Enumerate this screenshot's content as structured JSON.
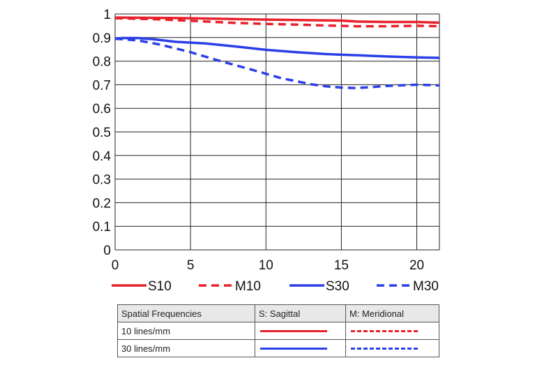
{
  "chart_data": {
    "type": "line",
    "title": "",
    "xlabel": "",
    "ylabel": "",
    "xlim": [
      0,
      21.5
    ],
    "ylim": [
      0,
      1
    ],
    "grid": true,
    "x_ticks": [
      0,
      5,
      10,
      15,
      20
    ],
    "y_ticks": [
      0,
      0.1,
      0.2,
      0.3,
      0.4,
      0.5,
      0.6,
      0.7,
      0.8,
      0.9,
      1
    ],
    "y_tick_labels": [
      "0",
      "0.1",
      "0.2",
      "0.3",
      "0.4",
      "0.5",
      "0.6",
      "0.7",
      "0.8",
      "0.9",
      "1"
    ],
    "legend_position": "bottom",
    "series": [
      {
        "name": "S10",
        "color": "#e8212b",
        "dash": false,
        "x": [
          0,
          5,
          10,
          15,
          16,
          18,
          20,
          21.5
        ],
        "y": [
          0.985,
          0.982,
          0.976,
          0.972,
          0.968,
          0.966,
          0.966,
          0.963
        ]
      },
      {
        "name": "M10",
        "color": "#e8212b",
        "dash": true,
        "x": [
          0,
          3,
          6,
          8,
          10,
          12,
          14,
          16,
          18,
          20,
          21.5
        ],
        "y": [
          0.982,
          0.977,
          0.968,
          0.962,
          0.958,
          0.955,
          0.951,
          0.948,
          0.948,
          0.95,
          0.948
        ]
      },
      {
        "name": "S30",
        "color": "#2b3fe8",
        "dash": false,
        "x": [
          0,
          0.5,
          1.5,
          2.5,
          4,
          6,
          8,
          10,
          12,
          14,
          16,
          18,
          20,
          21.5
        ],
        "y": [
          0.895,
          0.898,
          0.898,
          0.893,
          0.882,
          0.875,
          0.862,
          0.848,
          0.838,
          0.83,
          0.825,
          0.82,
          0.816,
          0.814
        ]
      },
      {
        "name": "M30",
        "color": "#2b3fe8",
        "dash": true,
        "x": [
          0,
          1.5,
          3,
          5,
          7,
          9,
          11,
          13,
          14,
          15,
          16,
          17,
          18,
          20,
          21.5
        ],
        "y": [
          0.895,
          0.888,
          0.87,
          0.838,
          0.8,
          0.765,
          0.728,
          0.702,
          0.693,
          0.688,
          0.686,
          0.69,
          0.695,
          0.7,
          0.697
        ]
      }
    ]
  },
  "key_table": {
    "headers": [
      "Spatial Frequencies",
      "S: Sagittal",
      "M: Meridional"
    ],
    "rows": [
      {
        "label": "10 lines/mm",
        "s_color": "#e8212b",
        "m_color": "#e8212b"
      },
      {
        "label": "30 lines/mm",
        "s_color": "#2b3fe8",
        "m_color": "#2b3fe8"
      }
    ]
  }
}
